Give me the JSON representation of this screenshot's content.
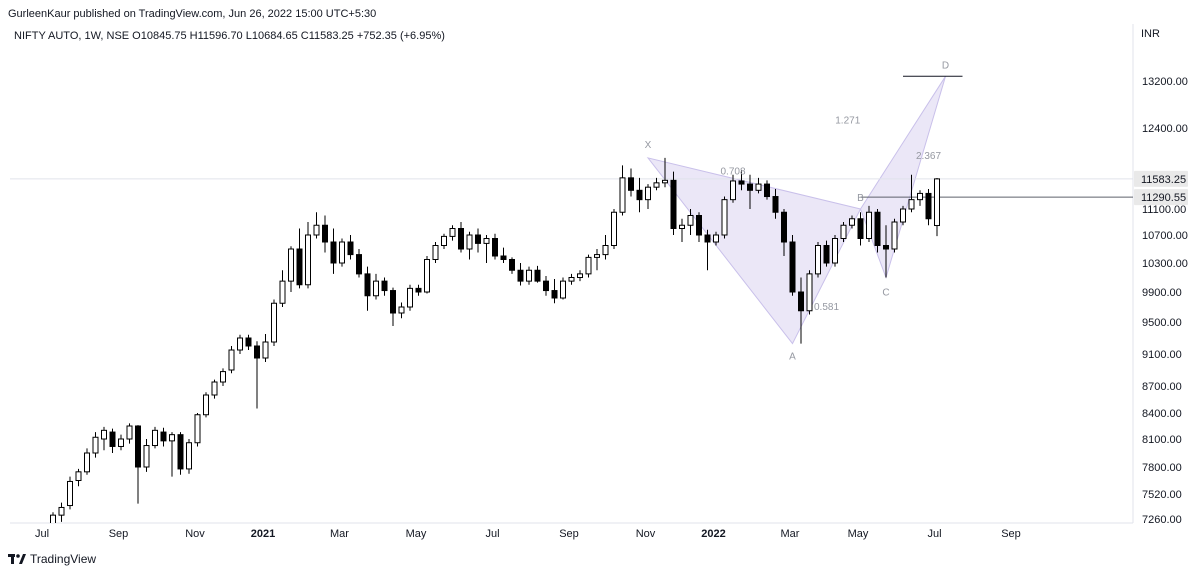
{
  "header": {
    "published": "GurleenKaur published on TradingView.com, Jun 26, 2022 15:00 UTC+5:30",
    "symbol_line": "NIFTY AUTO, 1W, NSE  O10845.75  H11596.70  L10684.65  C11583.25  +752.35 (+6.95%)"
  },
  "footer": {
    "brand": "TradingView",
    "logo_icon": "tradingview-logo-icon"
  },
  "colors": {
    "up_body": "#ffffff",
    "down_body": "#000000",
    "candle_outline": "#000000",
    "pattern_fill": "#e6e1f5",
    "pattern_stroke": "#c9c0ea",
    "pattern_label": "#9598a1",
    "axis_text": "#131722",
    "grid_line": "#d1d4dc",
    "price_badge_last": "#e9e9e9",
    "price_badge_level": "#e9e9e9"
  },
  "chart_data": {
    "type": "candlestick",
    "currency": "INR",
    "timeframe": "1W",
    "ylim": [
      7260,
      13700
    ],
    "y_ticks": [
      13200,
      12400,
      11100,
      10700,
      10300,
      9900,
      9500,
      9100,
      8700,
      8400,
      8100,
      7800,
      7520,
      7260
    ],
    "y_tick_labels": [
      "13200.00",
      "12400.00",
      "11100.00",
      "10700.00",
      "10300.00",
      "9900.00",
      "9500.00",
      "9100.00",
      "8700.00",
      "8400.00",
      "8100.00",
      "7800.00",
      "7520.00",
      "7260.00"
    ],
    "x_labels": [
      {
        "label": "Jul",
        "week": 0,
        "bold": false
      },
      {
        "label": "Sep",
        "week": 9,
        "bold": false
      },
      {
        "label": "Nov",
        "week": 18,
        "bold": false
      },
      {
        "label": "2021",
        "week": 26,
        "bold": true
      },
      {
        "label": "Mar",
        "week": 35,
        "bold": false
      },
      {
        "label": "May",
        "week": 44,
        "bold": false
      },
      {
        "label": "Jul",
        "week": 53,
        "bold": false
      },
      {
        "label": "Sep",
        "week": 62,
        "bold": false
      },
      {
        "label": "Nov",
        "week": 71,
        "bold": false
      },
      {
        "label": "2022",
        "week": 79,
        "bold": true
      },
      {
        "label": "Mar",
        "week": 88,
        "bold": false
      },
      {
        "label": "May",
        "week": 96,
        "bold": false
      },
      {
        "label": "Jul",
        "week": 105,
        "bold": false
      },
      {
        "label": "Sep",
        "week": 114,
        "bold": false
      }
    ],
    "candles": [
      {
        "o": 7200,
        "h": 7330,
        "l": 7150,
        "c": 7300
      },
      {
        "o": 7300,
        "h": 7430,
        "l": 7230,
        "c": 7380
      },
      {
        "o": 7400,
        "h": 7700,
        "l": 7360,
        "c": 7650
      },
      {
        "o": 7660,
        "h": 7780,
        "l": 7600,
        "c": 7750
      },
      {
        "o": 7750,
        "h": 8000,
        "l": 7720,
        "c": 7950
      },
      {
        "o": 7950,
        "h": 8180,
        "l": 7900,
        "c": 8120
      },
      {
        "o": 8100,
        "h": 8240,
        "l": 7980,
        "c": 8200
      },
      {
        "o": 8180,
        "h": 8220,
        "l": 7950,
        "c": 8020
      },
      {
        "o": 8020,
        "h": 8150,
        "l": 7980,
        "c": 8100
      },
      {
        "o": 8100,
        "h": 8280,
        "l": 8050,
        "c": 8250
      },
      {
        "o": 8250,
        "h": 8260,
        "l": 7420,
        "c": 7800
      },
      {
        "o": 7800,
        "h": 8100,
        "l": 7750,
        "c": 8030
      },
      {
        "o": 8030,
        "h": 8240,
        "l": 8000,
        "c": 8200
      },
      {
        "o": 8180,
        "h": 8230,
        "l": 8020,
        "c": 8080
      },
      {
        "o": 8080,
        "h": 8180,
        "l": 7700,
        "c": 8150
      },
      {
        "o": 8150,
        "h": 8180,
        "l": 7720,
        "c": 7780
      },
      {
        "o": 7780,
        "h": 8100,
        "l": 7730,
        "c": 8060
      },
      {
        "o": 8060,
        "h": 8400,
        "l": 8020,
        "c": 8380
      },
      {
        "o": 8380,
        "h": 8630,
        "l": 8350,
        "c": 8600
      },
      {
        "o": 8600,
        "h": 8780,
        "l": 8560,
        "c": 8750
      },
      {
        "o": 8750,
        "h": 8920,
        "l": 8700,
        "c": 8880
      },
      {
        "o": 8900,
        "h": 9200,
        "l": 8860,
        "c": 9150
      },
      {
        "o": 9150,
        "h": 9340,
        "l": 9100,
        "c": 9300
      },
      {
        "o": 9300,
        "h": 9340,
        "l": 9150,
        "c": 9200
      },
      {
        "o": 9200,
        "h": 9260,
        "l": 8450,
        "c": 9050
      },
      {
        "o": 9050,
        "h": 9350,
        "l": 9000,
        "c": 9250
      },
      {
        "o": 9250,
        "h": 9800,
        "l": 9200,
        "c": 9750
      },
      {
        "o": 9750,
        "h": 10200,
        "l": 9700,
        "c": 10050
      },
      {
        "o": 10050,
        "h": 10540,
        "l": 9900,
        "c": 10500
      },
      {
        "o": 10500,
        "h": 10800,
        "l": 9950,
        "c": 10000
      },
      {
        "o": 10000,
        "h": 10900,
        "l": 9950,
        "c": 10700
      },
      {
        "o": 10700,
        "h": 11050,
        "l": 10650,
        "c": 10850
      },
      {
        "o": 10850,
        "h": 11000,
        "l": 10450,
        "c": 10600
      },
      {
        "o": 10600,
        "h": 10800,
        "l": 10150,
        "c": 10300
      },
      {
        "o": 10300,
        "h": 10650,
        "l": 10250,
        "c": 10600
      },
      {
        "o": 10600,
        "h": 10700,
        "l": 10350,
        "c": 10420
      },
      {
        "o": 10420,
        "h": 10500,
        "l": 10100,
        "c": 10150
      },
      {
        "o": 10150,
        "h": 10250,
        "l": 9650,
        "c": 9850
      },
      {
        "o": 9850,
        "h": 10150,
        "l": 9800,
        "c": 10050
      },
      {
        "o": 10050,
        "h": 10100,
        "l": 9850,
        "c": 9920
      },
      {
        "o": 9920,
        "h": 9960,
        "l": 9450,
        "c": 9620
      },
      {
        "o": 9620,
        "h": 9760,
        "l": 9550,
        "c": 9700
      },
      {
        "o": 9700,
        "h": 10000,
        "l": 9650,
        "c": 9950
      },
      {
        "o": 9950,
        "h": 10000,
        "l": 9850,
        "c": 9900
      },
      {
        "o": 9900,
        "h": 10400,
        "l": 9880,
        "c": 10350
      },
      {
        "o": 10350,
        "h": 10600,
        "l": 10300,
        "c": 10550
      },
      {
        "o": 10550,
        "h": 10720,
        "l": 10500,
        "c": 10680
      },
      {
        "o": 10680,
        "h": 10850,
        "l": 10620,
        "c": 10800
      },
      {
        "o": 10800,
        "h": 10900,
        "l": 10450,
        "c": 10500
      },
      {
        "o": 10500,
        "h": 10750,
        "l": 10350,
        "c": 10700
      },
      {
        "o": 10700,
        "h": 10800,
        "l": 10450,
        "c": 10580
      },
      {
        "o": 10580,
        "h": 10700,
        "l": 10300,
        "c": 10650
      },
      {
        "o": 10650,
        "h": 10720,
        "l": 10350,
        "c": 10400
      },
      {
        "o": 10400,
        "h": 10520,
        "l": 10300,
        "c": 10350
      },
      {
        "o": 10350,
        "h": 10380,
        "l": 10150,
        "c": 10200
      },
      {
        "o": 10200,
        "h": 10300,
        "l": 9990,
        "c": 10050
      },
      {
        "o": 10050,
        "h": 10250,
        "l": 10000,
        "c": 10200
      },
      {
        "o": 10200,
        "h": 10260,
        "l": 10030,
        "c": 10050
      },
      {
        "o": 10050,
        "h": 10120,
        "l": 9850,
        "c": 9920
      },
      {
        "o": 9920,
        "h": 10080,
        "l": 9750,
        "c": 9820
      },
      {
        "o": 9820,
        "h": 10100,
        "l": 9800,
        "c": 10050
      },
      {
        "o": 10050,
        "h": 10150,
        "l": 10000,
        "c": 10100
      },
      {
        "o": 10100,
        "h": 10200,
        "l": 10050,
        "c": 10150
      },
      {
        "o": 10150,
        "h": 10420,
        "l": 10100,
        "c": 10380
      },
      {
        "o": 10380,
        "h": 10500,
        "l": 10200,
        "c": 10420
      },
      {
        "o": 10420,
        "h": 10700,
        "l": 10350,
        "c": 10550
      },
      {
        "o": 10550,
        "h": 11100,
        "l": 10500,
        "c": 11050
      },
      {
        "o": 11050,
        "h": 11800,
        "l": 11000,
        "c": 11600
      },
      {
        "o": 11600,
        "h": 11750,
        "l": 11300,
        "c": 11400
      },
      {
        "o": 11400,
        "h": 11600,
        "l": 11050,
        "c": 11250
      },
      {
        "o": 11250,
        "h": 11500,
        "l": 11100,
        "c": 11450
      },
      {
        "o": 11450,
        "h": 11600,
        "l": 11400,
        "c": 11520
      },
      {
        "o": 11520,
        "h": 11920,
        "l": 11450,
        "c": 11560
      },
      {
        "o": 11560,
        "h": 11700,
        "l": 10700,
        "c": 10800
      },
      {
        "o": 10800,
        "h": 10950,
        "l": 10600,
        "c": 10850
      },
      {
        "o": 10850,
        "h": 11100,
        "l": 10700,
        "c": 11000
      },
      {
        "o": 11000,
        "h": 11050,
        "l": 10600,
        "c": 10700
      },
      {
        "o": 10700,
        "h": 10780,
        "l": 10200,
        "c": 10600
      },
      {
        "o": 10600,
        "h": 10750,
        "l": 10550,
        "c": 10700
      },
      {
        "o": 10700,
        "h": 11300,
        "l": 10650,
        "c": 11250
      },
      {
        "o": 11250,
        "h": 11650,
        "l": 11200,
        "c": 11550
      },
      {
        "o": 11550,
        "h": 11720,
        "l": 11400,
        "c": 11500
      },
      {
        "o": 11500,
        "h": 11650,
        "l": 11100,
        "c": 11400
      },
      {
        "o": 11400,
        "h": 11600,
        "l": 11350,
        "c": 11500
      },
      {
        "o": 11500,
        "h": 11560,
        "l": 11250,
        "c": 11300
      },
      {
        "o": 11300,
        "h": 11420,
        "l": 10950,
        "c": 11050
      },
      {
        "o": 11050,
        "h": 11100,
        "l": 10400,
        "c": 10600
      },
      {
        "o": 10600,
        "h": 10700,
        "l": 9850,
        "c": 9900
      },
      {
        "o": 9900,
        "h": 10100,
        "l": 9230,
        "c": 9650
      },
      {
        "o": 9650,
        "h": 10200,
        "l": 9600,
        "c": 10150
      },
      {
        "o": 10150,
        "h": 10600,
        "l": 10100,
        "c": 10550
      },
      {
        "o": 10550,
        "h": 10620,
        "l": 10250,
        "c": 10300
      },
      {
        "o": 10300,
        "h": 10700,
        "l": 10250,
        "c": 10650
      },
      {
        "o": 10650,
        "h": 10900,
        "l": 10600,
        "c": 10850
      },
      {
        "o": 10850,
        "h": 11000,
        "l": 10800,
        "c": 10950
      },
      {
        "o": 10950,
        "h": 11050,
        "l": 10550,
        "c": 10650
      },
      {
        "o": 10650,
        "h": 11150,
        "l": 10600,
        "c": 11050
      },
      {
        "o": 11050,
        "h": 11100,
        "l": 10450,
        "c": 10550
      },
      {
        "o": 10550,
        "h": 10850,
        "l": 10100,
        "c": 10500
      },
      {
        "o": 10500,
        "h": 10950,
        "l": 10450,
        "c": 10900
      },
      {
        "o": 10900,
        "h": 11150,
        "l": 10850,
        "c": 11100
      },
      {
        "o": 11100,
        "h": 11650,
        "l": 11050,
        "c": 11250
      },
      {
        "o": 11250,
        "h": 11400,
        "l": 11150,
        "c": 11350
      },
      {
        "o": 11350,
        "h": 11420,
        "l": 10850,
        "c": 10950
      },
      {
        "o": 10845.75,
        "h": 11596.7,
        "l": 10684.65,
        "c": 11583.25
      }
    ],
    "pattern": {
      "points": [
        {
          "name": "X",
          "week": 70,
          "price": 11920
        },
        {
          "name": "A",
          "week": 87,
          "price": 9230
        },
        {
          "name": "B",
          "week": 95,
          "price": 11100
        },
        {
          "name": "C",
          "week": 98,
          "price": 10100
        },
        {
          "name": "D",
          "week": 105,
          "price": 13280
        }
      ],
      "ratios": [
        {
          "text": "0.708",
          "week": 80,
          "price": 11650
        },
        {
          "text": "0.581",
          "week": 91,
          "price": 9660
        },
        {
          "text": "1.271",
          "week": 93.5,
          "price": 12480
        },
        {
          "text": "2.367",
          "week": 103,
          "price": 11900
        }
      ]
    },
    "d_target_line": {
      "week_start": 100,
      "week_end": 107,
      "price": 13280
    },
    "b_level_line": {
      "week_start": 95,
      "price": 11290.55
    },
    "last_price": 11583.25,
    "last_price_label": "11583.25",
    "level_price": 11290.55,
    "level_price_label": "11290.55"
  }
}
